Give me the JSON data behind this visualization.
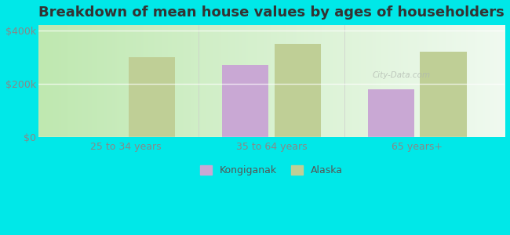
{
  "title": "Breakdown of mean house values by ages of householders",
  "categories": [
    "25 to 34 years",
    "35 to 64 years",
    "65 years+"
  ],
  "kongiganak": [
    0,
    270000,
    180000
  ],
  "alaska": [
    300000,
    350000,
    320000
  ],
  "kongiganak_color": "#c9a8d4",
  "alaska_color": "#bfcf96",
  "background_color": "#00e8e8",
  "plot_bg_left": "#c8e8c0",
  "plot_bg_right": "#f5faf5",
  "ylim": [
    0,
    420000
  ],
  "yticks": [
    0,
    200000,
    400000
  ],
  "ytick_labels": [
    "$0",
    "$200k",
    "$400k"
  ],
  "legend_labels": [
    "Kongiganak",
    "Alaska"
  ],
  "bar_width": 0.32,
  "title_fontsize": 13,
  "tick_fontsize": 9,
  "legend_fontsize": 9,
  "grid_color": "#ddeecc"
}
